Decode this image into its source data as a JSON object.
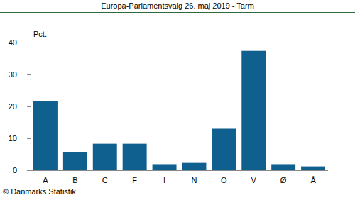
{
  "chart_data": {
    "type": "bar",
    "title": "Europa-Parlamentsvalg 26. maj 2019 - Tarm",
    "y_label": "Pct.",
    "source": "© Danmarks Statistik",
    "categories": [
      "A",
      "B",
      "C",
      "F",
      "I",
      "N",
      "O",
      "V",
      "Ø",
      "Å"
    ],
    "values": [
      21.6,
      5.6,
      8.3,
      8.3,
      1.9,
      2.3,
      13.0,
      37.4,
      1.9,
      1.2
    ],
    "color": "#0f5f8f",
    "ylim": [
      0,
      40
    ],
    "yticks": [
      0,
      10,
      20,
      30,
      40
    ],
    "grid": false
  }
}
